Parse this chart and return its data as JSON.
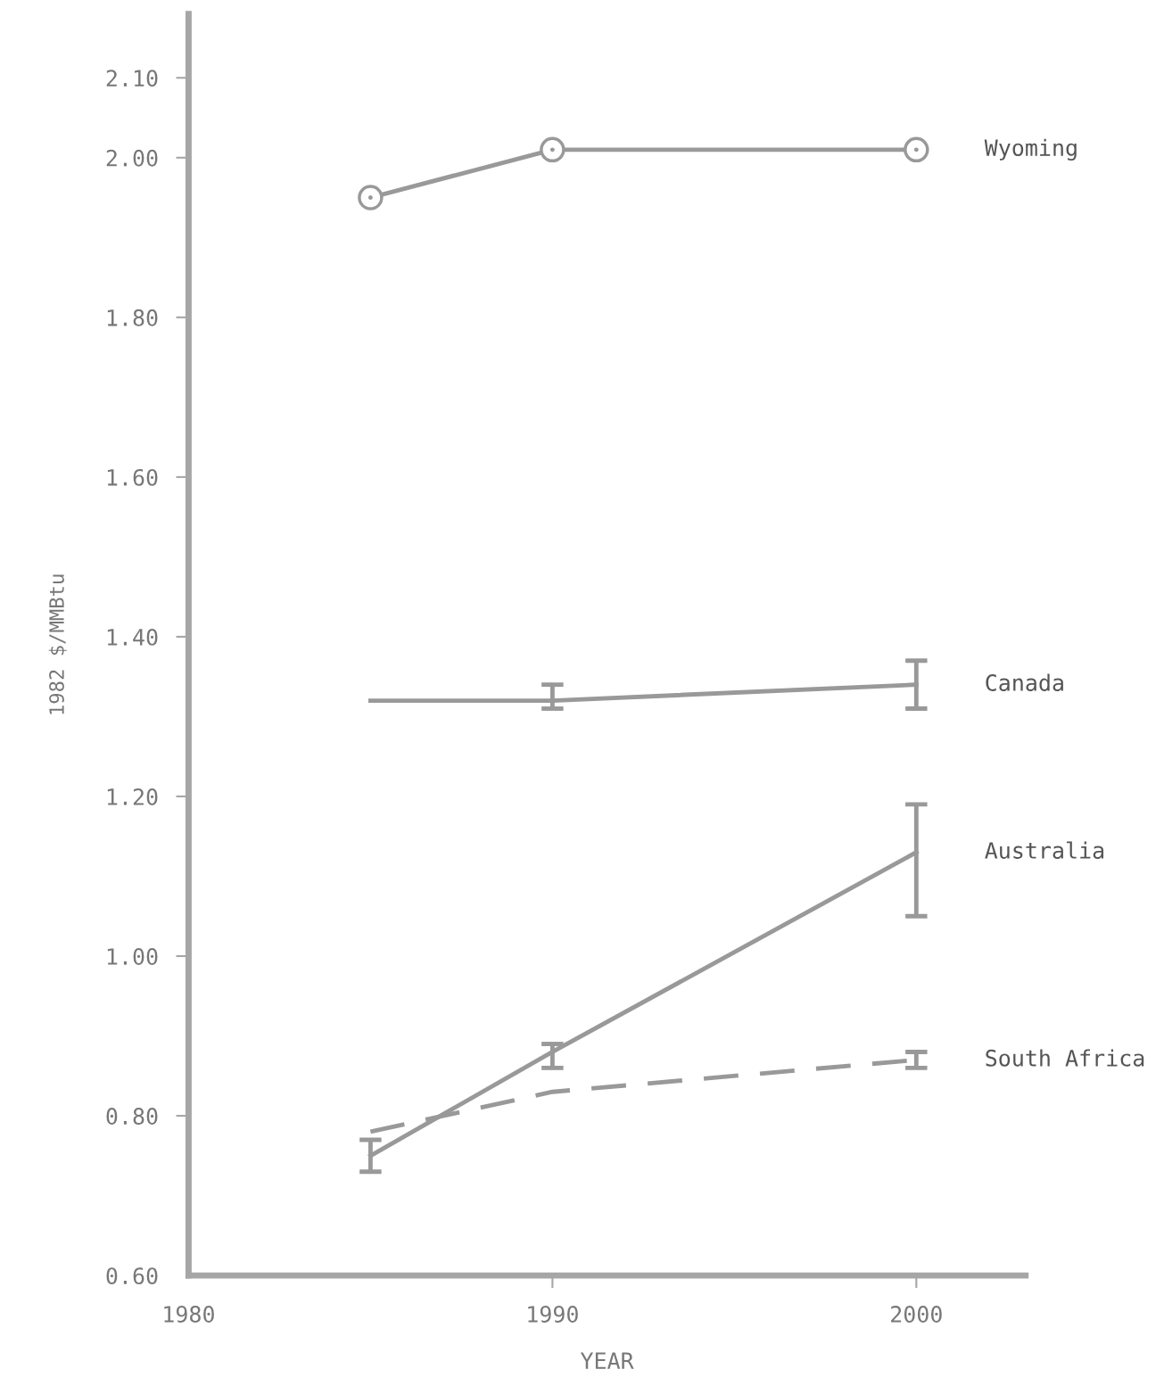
{
  "chart_data": {
    "type": "line",
    "xlabel": "YEAR",
    "ylabel": "1982 $/MMBtu",
    "x": [
      1985,
      1990,
      2000
    ],
    "series": [
      {
        "name": "Wyoming",
        "color": "#999999",
        "marker": "circle",
        "line_style": "solid",
        "values": [
          1.95,
          2.01,
          2.01
        ]
      },
      {
        "name": "Canada",
        "color": "#999999",
        "marker": "none",
        "line_style": "solid",
        "values": [
          1.32,
          1.32,
          1.34
        ],
        "errors": [
          null,
          [
            1.31,
            1.34
          ],
          [
            1.31,
            1.37
          ]
        ]
      },
      {
        "name": "Australia",
        "color": "#999999",
        "marker": "none",
        "line_style": "solid",
        "values": [
          0.75,
          0.88,
          1.13
        ],
        "errors": [
          [
            0.73,
            0.77
          ],
          [
            0.86,
            0.89
          ],
          [
            1.05,
            1.19
          ]
        ]
      },
      {
        "name": "South Africa",
        "color": "#999999",
        "marker": "none",
        "line_style": "dashed",
        "values": [
          0.78,
          0.83,
          0.87
        ],
        "errors": [
          null,
          null,
          [
            0.86,
            0.88
          ]
        ]
      }
    ],
    "xlim": [
      1980,
      2003
    ],
    "xticks": [
      1980,
      1990,
      2000
    ],
    "ylim": [
      0.6,
      2.18
    ],
    "yticks": [
      {
        "value": 0.6,
        "label": "0.60"
      },
      {
        "value": 0.8,
        "label": "0.80"
      },
      {
        "value": 1.0,
        "label": "1.00"
      },
      {
        "value": 1.2,
        "label": "1.20"
      },
      {
        "value": 1.4,
        "label": "1.40"
      },
      {
        "value": 1.6,
        "label": "1.60"
      },
      {
        "value": 1.8,
        "label": "1.80"
      },
      {
        "value": 2.0,
        "label": "2.00"
      },
      {
        "value": 2.1,
        "label": "2.10"
      }
    ],
    "grid": false,
    "legend": false
  }
}
